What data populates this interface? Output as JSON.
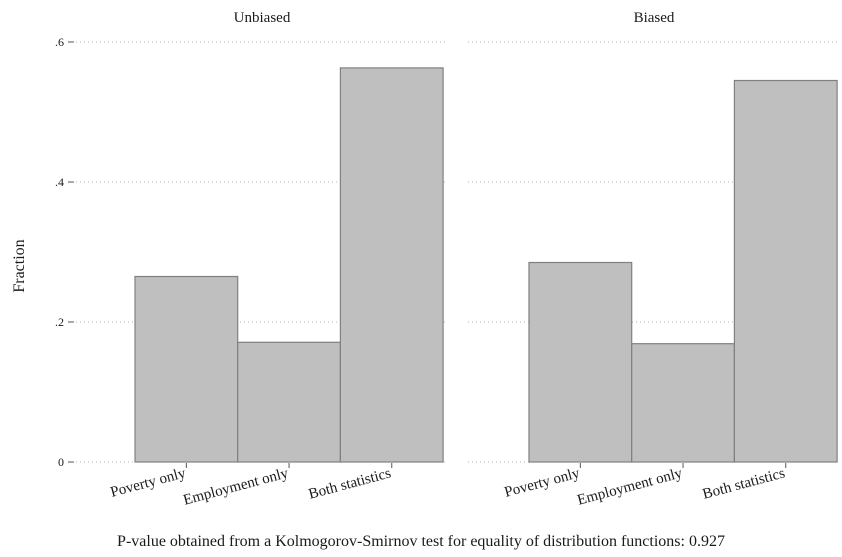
{
  "chart_data": {
    "type": "bar",
    "ylabel": "Fraction",
    "ylim": [
      0,
      0.6
    ],
    "yticks": [
      {
        "value": 0,
        "label": "0"
      },
      {
        "value": 0.2,
        "label": ".2"
      },
      {
        "value": 0.4,
        "label": ".4"
      },
      {
        "value": 0.6,
        "label": ".6"
      }
    ],
    "categories": [
      "Poverty only",
      "Employment only",
      "Both statistics"
    ],
    "grid": true,
    "panels": [
      {
        "title": "Unbiased",
        "values": [
          0.265,
          0.171,
          0.563
        ]
      },
      {
        "title": "Biased",
        "values": [
          0.285,
          0.169,
          0.545
        ]
      }
    ],
    "note": "P-value obtained from a Kolmogorov-Smirnov test for equality of distribution functions: 0.927"
  }
}
